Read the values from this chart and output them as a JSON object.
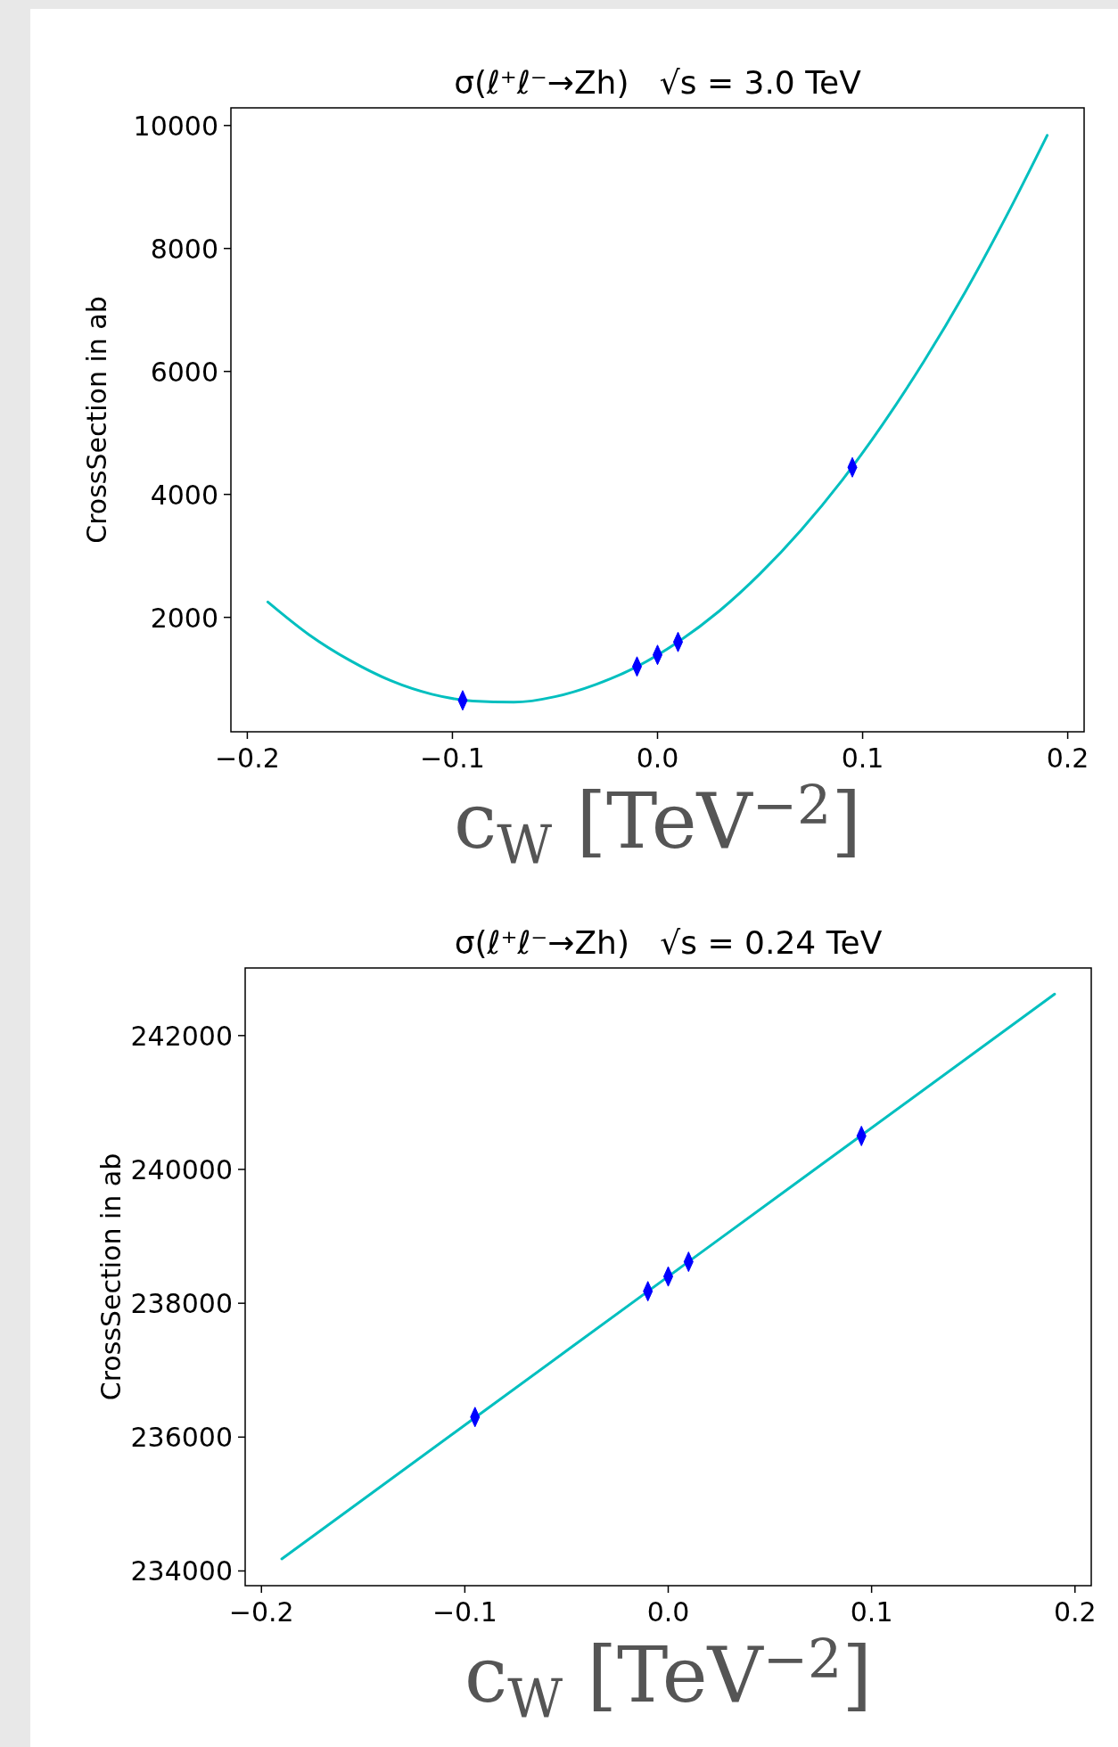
{
  "chart_data": [
    {
      "type": "line",
      "title": "σ(ℓ⁺ℓ⁻→Zh)   √s = 3.0 TeV",
      "xlabel": "c$_{W}$ [TeV$^{−2}$]",
      "ylabel": "CrossSection in ab",
      "xlim": [
        -0.208,
        0.208
      ],
      "ylim": [
        139,
        10287
      ],
      "xticks": [
        {
          "value": -0.2,
          "label": "−0.2"
        },
        {
          "value": -0.1,
          "label": "−0.1"
        },
        {
          "value": 0,
          "label": "0.0"
        },
        {
          "value": 0.1,
          "label": "0.1"
        },
        {
          "value": 0.2,
          "label": "0.2"
        }
      ],
      "yticks": [
        2000,
        4000,
        6000,
        8000,
        10000
      ],
      "series": [
        {
          "type": "line",
          "color": "#00bfbf",
          "x": [
            -0.19,
            -0.17,
            -0.15,
            -0.13,
            -0.11,
            -0.09,
            -0.07,
            -0.05,
            -0.03,
            -0.01,
            0.01,
            0.03,
            0.05,
            0.07,
            0.09,
            0.11,
            0.13,
            0.15,
            0.17,
            0.19
          ],
          "values": [
            2250,
            1720,
            1300,
            970,
            750,
            640,
            620,
            710,
            910,
            1200,
            1600,
            2100,
            2710,
            3420,
            4230,
            5150,
            6170,
            7290,
            8520,
            9840
          ]
        },
        {
          "type": "scatter",
          "color": "#0000ff",
          "marker": "diamond",
          "x": [
            -0.095,
            -0.01,
            0,
            0.01,
            0.095
          ],
          "values": [
            650,
            1200,
            1390,
            1600,
            4440
          ]
        }
      ]
    },
    {
      "type": "line",
      "title": "σ(ℓ⁺ℓ⁻→Zh)   √s = 0.24 TeV",
      "xlabel": "c$_{W}$ [TeV$^{−2}$]",
      "ylabel": "CrossSection in ab",
      "xlim": [
        -0.208,
        0.208
      ],
      "ylim": [
        233780,
        243010
      ],
      "xticks": [
        {
          "value": -0.2,
          "label": "−0.2"
        },
        {
          "value": -0.1,
          "label": "−0.1"
        },
        {
          "value": 0,
          "label": "0.0"
        },
        {
          "value": 0.1,
          "label": "0.1"
        },
        {
          "value": 0.2,
          "label": "0.2"
        }
      ],
      "yticks": [
        234000,
        236000,
        238000,
        240000,
        242000
      ],
      "series": [
        {
          "type": "line",
          "color": "#00bfbf",
          "x": [
            -0.19,
            -0.095,
            0,
            0.095,
            0.19
          ],
          "values": [
            234180,
            236290,
            238400,
            240510,
            242620
          ]
        },
        {
          "type": "scatter",
          "color": "#0000ff",
          "marker": "diamond",
          "x": [
            -0.095,
            -0.01,
            0,
            0.01,
            0.095
          ],
          "values": [
            236300,
            238180,
            238400,
            238620,
            240500
          ]
        }
      ]
    }
  ]
}
